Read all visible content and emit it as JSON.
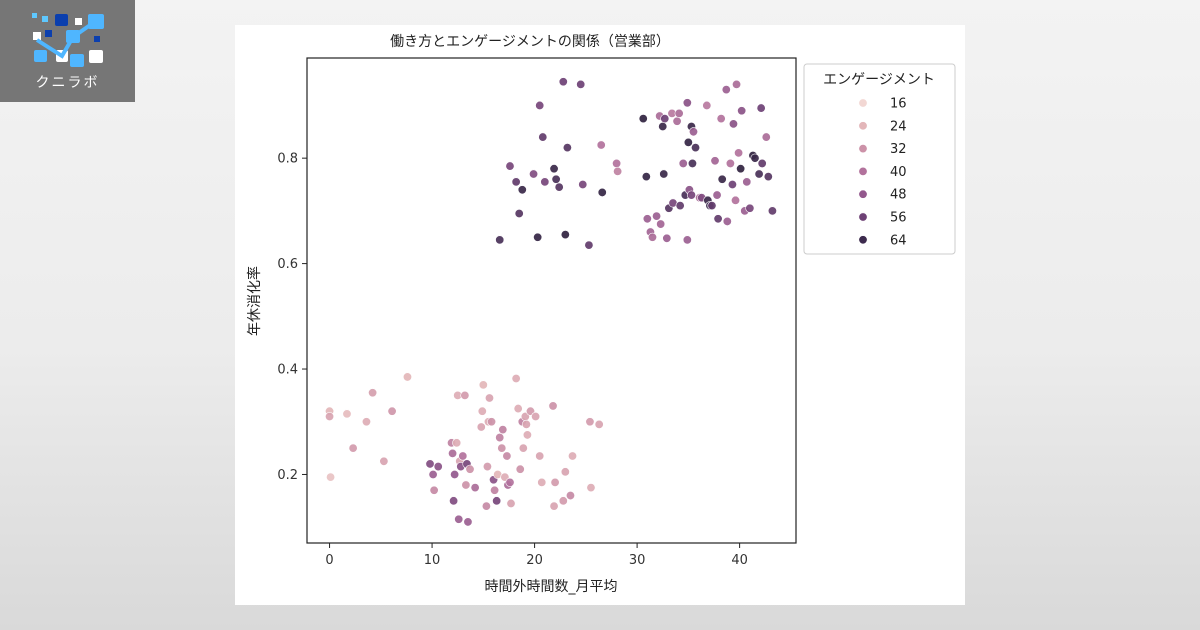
{
  "logo": {
    "text": "クニラボ"
  },
  "chart_data": {
    "type": "scatter",
    "title": "働き方とエンゲージメントの関係（営業部）",
    "xlabel": "時間外時間数_月平均",
    "ylabel": "年休消化率",
    "xlim": [
      -2.2,
      45.5
    ],
    "ylim": [
      0.07,
      0.99
    ],
    "xticks": [
      0,
      10,
      20,
      30,
      40
    ],
    "yticks": [
      0.2,
      0.4,
      0.6,
      0.8
    ],
    "grid": false,
    "legend": {
      "title": "エンゲージメント",
      "placement": "outside-right-top",
      "entries": [
        {
          "label": "16",
          "color": "#f2d7d3"
        },
        {
          "label": "24",
          "color": "#e3b6b9"
        },
        {
          "label": "32",
          "color": "#cc92a8"
        },
        {
          "label": "40",
          "color": "#b2729c"
        },
        {
          "label": "48",
          "color": "#93588d"
        },
        {
          "label": "56",
          "color": "#6e4175"
        },
        {
          "label": "64",
          "color": "#3d2b4e"
        }
      ]
    },
    "color_scale": {
      "min": 10,
      "max": 66,
      "colors": [
        "#f7e4df",
        "#e3b6b9",
        "#cc92a8",
        "#b2729c",
        "#93588d",
        "#6e4175",
        "#3d2b4e",
        "#2b1f3a"
      ]
    },
    "points": [
      {
        "x": 0,
        "y": 0.32,
        "e": 18
      },
      {
        "x": 0,
        "y": 0.31,
        "e": 22
      },
      {
        "x": 0.1,
        "y": 0.195,
        "e": 16
      },
      {
        "x": 1.7,
        "y": 0.315,
        "e": 17
      },
      {
        "x": 2.3,
        "y": 0.25,
        "e": 24
      },
      {
        "x": 3.6,
        "y": 0.3,
        "e": 20
      },
      {
        "x": 4.2,
        "y": 0.355,
        "e": 23
      },
      {
        "x": 5.3,
        "y": 0.225,
        "e": 22
      },
      {
        "x": 6.1,
        "y": 0.32,
        "e": 25
      },
      {
        "x": 7.6,
        "y": 0.385,
        "e": 18
      },
      {
        "x": 9.8,
        "y": 0.22,
        "e": 46
      },
      {
        "x": 10.1,
        "y": 0.2,
        "e": 40
      },
      {
        "x": 10.2,
        "y": 0.17,
        "e": 28
      },
      {
        "x": 10.6,
        "y": 0.215,
        "e": 44
      },
      {
        "x": 11.9,
        "y": 0.26,
        "e": 30
      },
      {
        "x": 12,
        "y": 0.24,
        "e": 36
      },
      {
        "x": 12.1,
        "y": 0.15,
        "e": 46
      },
      {
        "x": 12.2,
        "y": 0.2,
        "e": 42
      },
      {
        "x": 12.4,
        "y": 0.26,
        "e": 20
      },
      {
        "x": 12.5,
        "y": 0.35,
        "e": 20
      },
      {
        "x": 12.6,
        "y": 0.115,
        "e": 40
      },
      {
        "x": 12.7,
        "y": 0.225,
        "e": 22
      },
      {
        "x": 12.8,
        "y": 0.215,
        "e": 44
      },
      {
        "x": 13,
        "y": 0.235,
        "e": 34
      },
      {
        "x": 13.2,
        "y": 0.35,
        "e": 24
      },
      {
        "x": 13.3,
        "y": 0.18,
        "e": 26
      },
      {
        "x": 13.4,
        "y": 0.22,
        "e": 48
      },
      {
        "x": 13.5,
        "y": 0.11,
        "e": 40
      },
      {
        "x": 13.7,
        "y": 0.21,
        "e": 26
      },
      {
        "x": 14.2,
        "y": 0.175,
        "e": 36
      },
      {
        "x": 14.8,
        "y": 0.29,
        "e": 22
      },
      {
        "x": 14.9,
        "y": 0.32,
        "e": 20
      },
      {
        "x": 15,
        "y": 0.37,
        "e": 18
      },
      {
        "x": 15.3,
        "y": 0.14,
        "e": 28
      },
      {
        "x": 15.4,
        "y": 0.215,
        "e": 24
      },
      {
        "x": 15.5,
        "y": 0.3,
        "e": 20
      },
      {
        "x": 15.6,
        "y": 0.345,
        "e": 22
      },
      {
        "x": 15.8,
        "y": 0.3,
        "e": 26
      },
      {
        "x": 16,
        "y": 0.19,
        "e": 44
      },
      {
        "x": 16.1,
        "y": 0.17,
        "e": 30
      },
      {
        "x": 16.3,
        "y": 0.15,
        "e": 48
      },
      {
        "x": 16.4,
        "y": 0.2,
        "e": 18
      },
      {
        "x": 16.6,
        "y": 0.27,
        "e": 30
      },
      {
        "x": 16.8,
        "y": 0.25,
        "e": 26
      },
      {
        "x": 16.9,
        "y": 0.285,
        "e": 30
      },
      {
        "x": 17.1,
        "y": 0.195,
        "e": 20
      },
      {
        "x": 17.3,
        "y": 0.235,
        "e": 28
      },
      {
        "x": 17.4,
        "y": 0.18,
        "e": 36
      },
      {
        "x": 17.6,
        "y": 0.185,
        "e": 34
      },
      {
        "x": 17.7,
        "y": 0.145,
        "e": 22
      },
      {
        "x": 18.2,
        "y": 0.382,
        "e": 20
      },
      {
        "x": 18.4,
        "y": 0.325,
        "e": 20
      },
      {
        "x": 18.6,
        "y": 0.21,
        "e": 26
      },
      {
        "x": 18.8,
        "y": 0.3,
        "e": 30
      },
      {
        "x": 18.9,
        "y": 0.25,
        "e": 22
      },
      {
        "x": 19.1,
        "y": 0.31,
        "e": 22
      },
      {
        "x": 19.2,
        "y": 0.295,
        "e": 22
      },
      {
        "x": 19.3,
        "y": 0.275,
        "e": 20
      },
      {
        "x": 19.6,
        "y": 0.32,
        "e": 24
      },
      {
        "x": 20.1,
        "y": 0.31,
        "e": 22
      },
      {
        "x": 20.5,
        "y": 0.235,
        "e": 22
      },
      {
        "x": 20.7,
        "y": 0.185,
        "e": 20
      },
      {
        "x": 21.8,
        "y": 0.33,
        "e": 26
      },
      {
        "x": 21.9,
        "y": 0.14,
        "e": 22
      },
      {
        "x": 22,
        "y": 0.185,
        "e": 24
      },
      {
        "x": 22.8,
        "y": 0.15,
        "e": 24
      },
      {
        "x": 23,
        "y": 0.205,
        "e": 22
      },
      {
        "x": 23.5,
        "y": 0.16,
        "e": 28
      },
      {
        "x": 23.7,
        "y": 0.235,
        "e": 20
      },
      {
        "x": 25.4,
        "y": 0.3,
        "e": 24
      },
      {
        "x": 25.5,
        "y": 0.175,
        "e": 20
      },
      {
        "x": 26.3,
        "y": 0.295,
        "e": 22
      },
      {
        "x": 16.6,
        "y": 0.645,
        "e": 56
      },
      {
        "x": 17.6,
        "y": 0.785,
        "e": 48
      },
      {
        "x": 18.2,
        "y": 0.755,
        "e": 52
      },
      {
        "x": 18.5,
        "y": 0.695,
        "e": 54
      },
      {
        "x": 18.8,
        "y": 0.74,
        "e": 60
      },
      {
        "x": 19.9,
        "y": 0.77,
        "e": 46
      },
      {
        "x": 20.3,
        "y": 0.65,
        "e": 62
      },
      {
        "x": 20.5,
        "y": 0.9,
        "e": 48
      },
      {
        "x": 20.8,
        "y": 0.84,
        "e": 52
      },
      {
        "x": 21,
        "y": 0.755,
        "e": 48
      },
      {
        "x": 21.9,
        "y": 0.78,
        "e": 60
      },
      {
        "x": 22.1,
        "y": 0.76,
        "e": 56
      },
      {
        "x": 22.4,
        "y": 0.745,
        "e": 54
      },
      {
        "x": 22.8,
        "y": 0.945,
        "e": 50
      },
      {
        "x": 23,
        "y": 0.655,
        "e": 64
      },
      {
        "x": 23.2,
        "y": 0.82,
        "e": 54
      },
      {
        "x": 24.5,
        "y": 0.94,
        "e": 50
      },
      {
        "x": 24.7,
        "y": 0.75,
        "e": 48
      },
      {
        "x": 25.3,
        "y": 0.635,
        "e": 52
      },
      {
        "x": 26.6,
        "y": 0.735,
        "e": 62
      },
      {
        "x": 26.5,
        "y": 0.825,
        "e": 34
      },
      {
        "x": 28,
        "y": 0.79,
        "e": 34
      },
      {
        "x": 28.1,
        "y": 0.775,
        "e": 30
      },
      {
        "x": 30.6,
        "y": 0.875,
        "e": 64
      },
      {
        "x": 30.9,
        "y": 0.765,
        "e": 62
      },
      {
        "x": 31,
        "y": 0.685,
        "e": 40
      },
      {
        "x": 31.3,
        "y": 0.66,
        "e": 38
      },
      {
        "x": 31.5,
        "y": 0.65,
        "e": 36
      },
      {
        "x": 31.9,
        "y": 0.69,
        "e": 40
      },
      {
        "x": 32.2,
        "y": 0.88,
        "e": 36
      },
      {
        "x": 32.3,
        "y": 0.675,
        "e": 38
      },
      {
        "x": 32.5,
        "y": 0.86,
        "e": 60
      },
      {
        "x": 32.7,
        "y": 0.875,
        "e": 50
      },
      {
        "x": 32.9,
        "y": 0.648,
        "e": 40
      },
      {
        "x": 32.6,
        "y": 0.77,
        "e": 60
      },
      {
        "x": 33.1,
        "y": 0.705,
        "e": 54
      },
      {
        "x": 33.4,
        "y": 0.885,
        "e": 32
      },
      {
        "x": 33.5,
        "y": 0.715,
        "e": 48
      },
      {
        "x": 33.9,
        "y": 0.87,
        "e": 36
      },
      {
        "x": 34.1,
        "y": 0.885,
        "e": 36
      },
      {
        "x": 34.2,
        "y": 0.71,
        "e": 52
      },
      {
        "x": 34.5,
        "y": 0.79,
        "e": 40
      },
      {
        "x": 34.7,
        "y": 0.73,
        "e": 56
      },
      {
        "x": 34.9,
        "y": 0.645,
        "e": 40
      },
      {
        "x": 34.9,
        "y": 0.905,
        "e": 44
      },
      {
        "x": 35,
        "y": 0.83,
        "e": 62
      },
      {
        "x": 35.1,
        "y": 0.74,
        "e": 44
      },
      {
        "x": 35.3,
        "y": 0.73,
        "e": 48
      },
      {
        "x": 35.3,
        "y": 0.86,
        "e": 60
      },
      {
        "x": 35.4,
        "y": 0.79,
        "e": 56
      },
      {
        "x": 35.5,
        "y": 0.85,
        "e": 40
      },
      {
        "x": 35.7,
        "y": 0.82,
        "e": 56
      },
      {
        "x": 36.1,
        "y": 0.725,
        "e": 36
      },
      {
        "x": 36.3,
        "y": 0.725,
        "e": 46
      },
      {
        "x": 36.8,
        "y": 0.9,
        "e": 32
      },
      {
        "x": 36.9,
        "y": 0.72,
        "e": 60
      },
      {
        "x": 37.1,
        "y": 0.71,
        "e": 58
      },
      {
        "x": 37.3,
        "y": 0.71,
        "e": 52
      },
      {
        "x": 37.6,
        "y": 0.795,
        "e": 38
      },
      {
        "x": 37.8,
        "y": 0.73,
        "e": 40
      },
      {
        "x": 37.9,
        "y": 0.685,
        "e": 52
      },
      {
        "x": 38.2,
        "y": 0.875,
        "e": 34
      },
      {
        "x": 38.3,
        "y": 0.76,
        "e": 60
      },
      {
        "x": 38.7,
        "y": 0.93,
        "e": 40
      },
      {
        "x": 38.8,
        "y": 0.68,
        "e": 40
      },
      {
        "x": 39.1,
        "y": 0.79,
        "e": 34
      },
      {
        "x": 39.3,
        "y": 0.75,
        "e": 50
      },
      {
        "x": 39.4,
        "y": 0.865,
        "e": 44
      },
      {
        "x": 39.6,
        "y": 0.72,
        "e": 34
      },
      {
        "x": 39.7,
        "y": 0.94,
        "e": 36
      },
      {
        "x": 39.9,
        "y": 0.81,
        "e": 34
      },
      {
        "x": 40.1,
        "y": 0.78,
        "e": 64
      },
      {
        "x": 40.2,
        "y": 0.89,
        "e": 44
      },
      {
        "x": 40.5,
        "y": 0.7,
        "e": 40
      },
      {
        "x": 40.7,
        "y": 0.755,
        "e": 40
      },
      {
        "x": 41,
        "y": 0.705,
        "e": 48
      },
      {
        "x": 41.3,
        "y": 0.805,
        "e": 64
      },
      {
        "x": 41.5,
        "y": 0.8,
        "e": 60
      },
      {
        "x": 41.9,
        "y": 0.77,
        "e": 56
      },
      {
        "x": 42.1,
        "y": 0.895,
        "e": 50
      },
      {
        "x": 42.2,
        "y": 0.79,
        "e": 52
      },
      {
        "x": 42.6,
        "y": 0.84,
        "e": 36
      },
      {
        "x": 42.8,
        "y": 0.765,
        "e": 54
      },
      {
        "x": 43.2,
        "y": 0.7,
        "e": 52
      }
    ]
  }
}
